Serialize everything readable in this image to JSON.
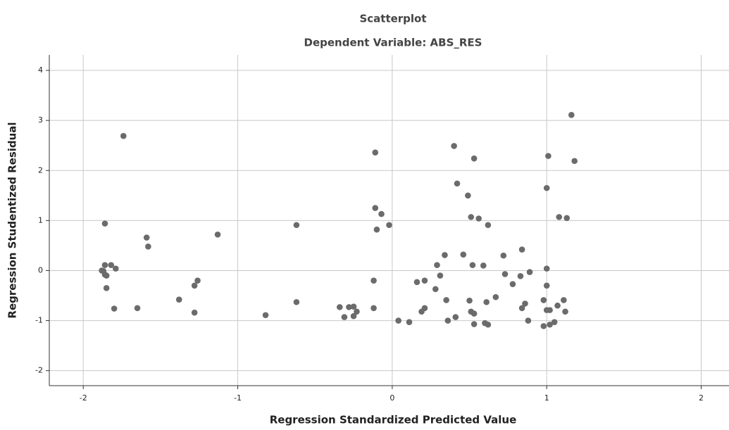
{
  "chart_data": {
    "type": "scatter",
    "title": "Scatterplot",
    "subtitle": "Dependent Variable: ABS_RES",
    "x_label": "Regression Standardized Predicted Value",
    "y_label": "Regression Studentized Residual",
    "color": "#6b6b6b",
    "grid": true,
    "xlim": [
      -2.22,
      2.18
    ],
    "ylim": [
      -2.3,
      4.31
    ],
    "xticks": [
      -2,
      -1,
      0,
      1,
      2
    ],
    "yticks": [
      -2,
      -1,
      0,
      1,
      2,
      3,
      4
    ],
    "x": [
      -1.74,
      -1.86,
      -1.86,
      -1.82,
      -1.79,
      -1.87,
      -1.86,
      -1.85,
      -1.88,
      -1.85,
      -1.8,
      -1.59,
      -1.58,
      -1.65,
      -1.38,
      -1.26,
      -1.28,
      -1.28,
      -1.13,
      -0.82,
      -0.62,
      -0.62,
      -0.34,
      -0.31,
      -0.28,
      -0.25,
      -0.23,
      -0.25,
      -0.11,
      -0.11,
      -0.07,
      -0.1,
      -0.02,
      -0.12,
      -0.12,
      0.04,
      0.11,
      0.16,
      0.21,
      0.19,
      0.21,
      0.29,
      0.28,
      0.31,
      0.34,
      0.35,
      0.36,
      0.4,
      0.42,
      0.41,
      0.46,
      0.49,
      0.51,
      0.52,
      0.5,
      0.51,
      0.53,
      0.53,
      0.56,
      0.59,
      0.6,
      0.62,
      0.62,
      0.61,
      0.53,
      0.67,
      0.72,
      0.73,
      0.78,
      0.84,
      0.83,
      0.84,
      0.86,
      0.89,
      0.88,
      1.01,
      1.0,
      1.0,
      1.0,
      0.98,
      1.0,
      1.02,
      0.98,
      1.02,
      1.05,
      1.07,
      1.08,
      1.11,
      1.12,
      1.13,
      1.16,
      1.18
    ],
    "values": [
      2.69,
      0.94,
      0.11,
      0.11,
      0.04,
      -0.01,
      -0.08,
      -0.1,
      0.0,
      -0.35,
      -0.76,
      0.66,
      0.48,
      -0.75,
      -0.58,
      -0.2,
      -0.3,
      -0.84,
      0.72,
      -0.89,
      0.91,
      -0.63,
      -0.73,
      -0.93,
      -0.73,
      -0.72,
      -0.82,
      -0.91,
      2.36,
      1.25,
      1.13,
      0.82,
      0.91,
      -0.2,
      -0.75,
      -1.0,
      -1.03,
      -0.23,
      -0.2,
      -0.82,
      -0.75,
      0.11,
      -0.37,
      -0.1,
      0.31,
      -0.59,
      -1.0,
      2.49,
      1.74,
      -0.93,
      0.32,
      1.5,
      1.07,
      0.11,
      -0.6,
      -0.82,
      -0.86,
      -1.07,
      1.04,
      0.1,
      -1.05,
      -1.08,
      0.91,
      -0.63,
      2.24,
      -0.53,
      0.3,
      -0.07,
      -0.27,
      0.42,
      -0.11,
      -0.75,
      -0.66,
      -0.03,
      -1.0,
      2.29,
      1.65,
      0.04,
      -0.3,
      -0.59,
      -0.79,
      -0.79,
      -1.11,
      -1.08,
      -1.03,
      -0.7,
      1.07,
      -0.59,
      -0.82,
      1.05,
      3.11,
      2.19
    ]
  }
}
